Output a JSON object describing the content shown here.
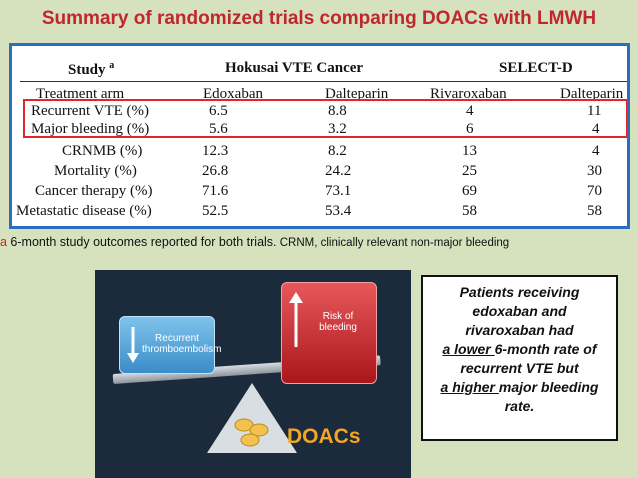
{
  "title": "Summary of randomized trials comparing DOACs with LMWH",
  "table": {
    "header1": {
      "study": "Study",
      "study_sup": "a",
      "trial1": "Hokusai VTE Cancer",
      "trial2": "SELECT-D"
    },
    "header2": {
      "arm": "Treatment arm",
      "c1": "Edoxaban",
      "c2": "Dalteparin",
      "c3": "Rivaroxaban",
      "c4": "Dalteparin"
    },
    "rows": [
      {
        "label": "Recurrent VTE (%)",
        "v": [
          "6.5",
          "8.8",
          "4",
          "11"
        ]
      },
      {
        "label": "Major bleeding (%)",
        "v": [
          "5.6",
          "3.2",
          "6",
          "4"
        ]
      },
      {
        "label": "CRNMB (%)",
        "v": [
          "12.3",
          "8.2",
          "13",
          "4"
        ]
      },
      {
        "label": "Mortality (%)",
        "v": [
          "26.8",
          "24.2",
          "25",
          "30"
        ]
      },
      {
        "label": "Cancer therapy (%)",
        "v": [
          "71.6",
          "73.1",
          "69",
          "70"
        ]
      },
      {
        "label": "Metastatic disease (%)",
        "v": [
          "52.5",
          "53.4",
          "58",
          "58"
        ]
      }
    ]
  },
  "footnote": {
    "marker": "a",
    "text": " 6-month study outcomes reported for both trials.",
    "abbr": " CRNM, clinically relevant non-major bleeding"
  },
  "illustration": {
    "left_card": "Recurrent thromboembolism",
    "right_card_line1": "Risk of",
    "right_card_line2": "bleeding",
    "label": "DOACs"
  },
  "callout": {
    "line1": "Patients receiving",
    "line2": "edoxaban and",
    "line3": "rivaroxaban had",
    "line4_u": "a lower ",
    "line4_rest": "6-month rate of",
    "line5": "recurrent VTE but",
    "line6_u": "a higher ",
    "line6_rest": "major bleeding",
    "line7": "rate."
  },
  "colors": {
    "title": "#c0262d",
    "table_border": "#2a6ebf",
    "highlight_box": "#e0252b",
    "background": "#d6e2bd",
    "doacs": "#f3a523"
  }
}
